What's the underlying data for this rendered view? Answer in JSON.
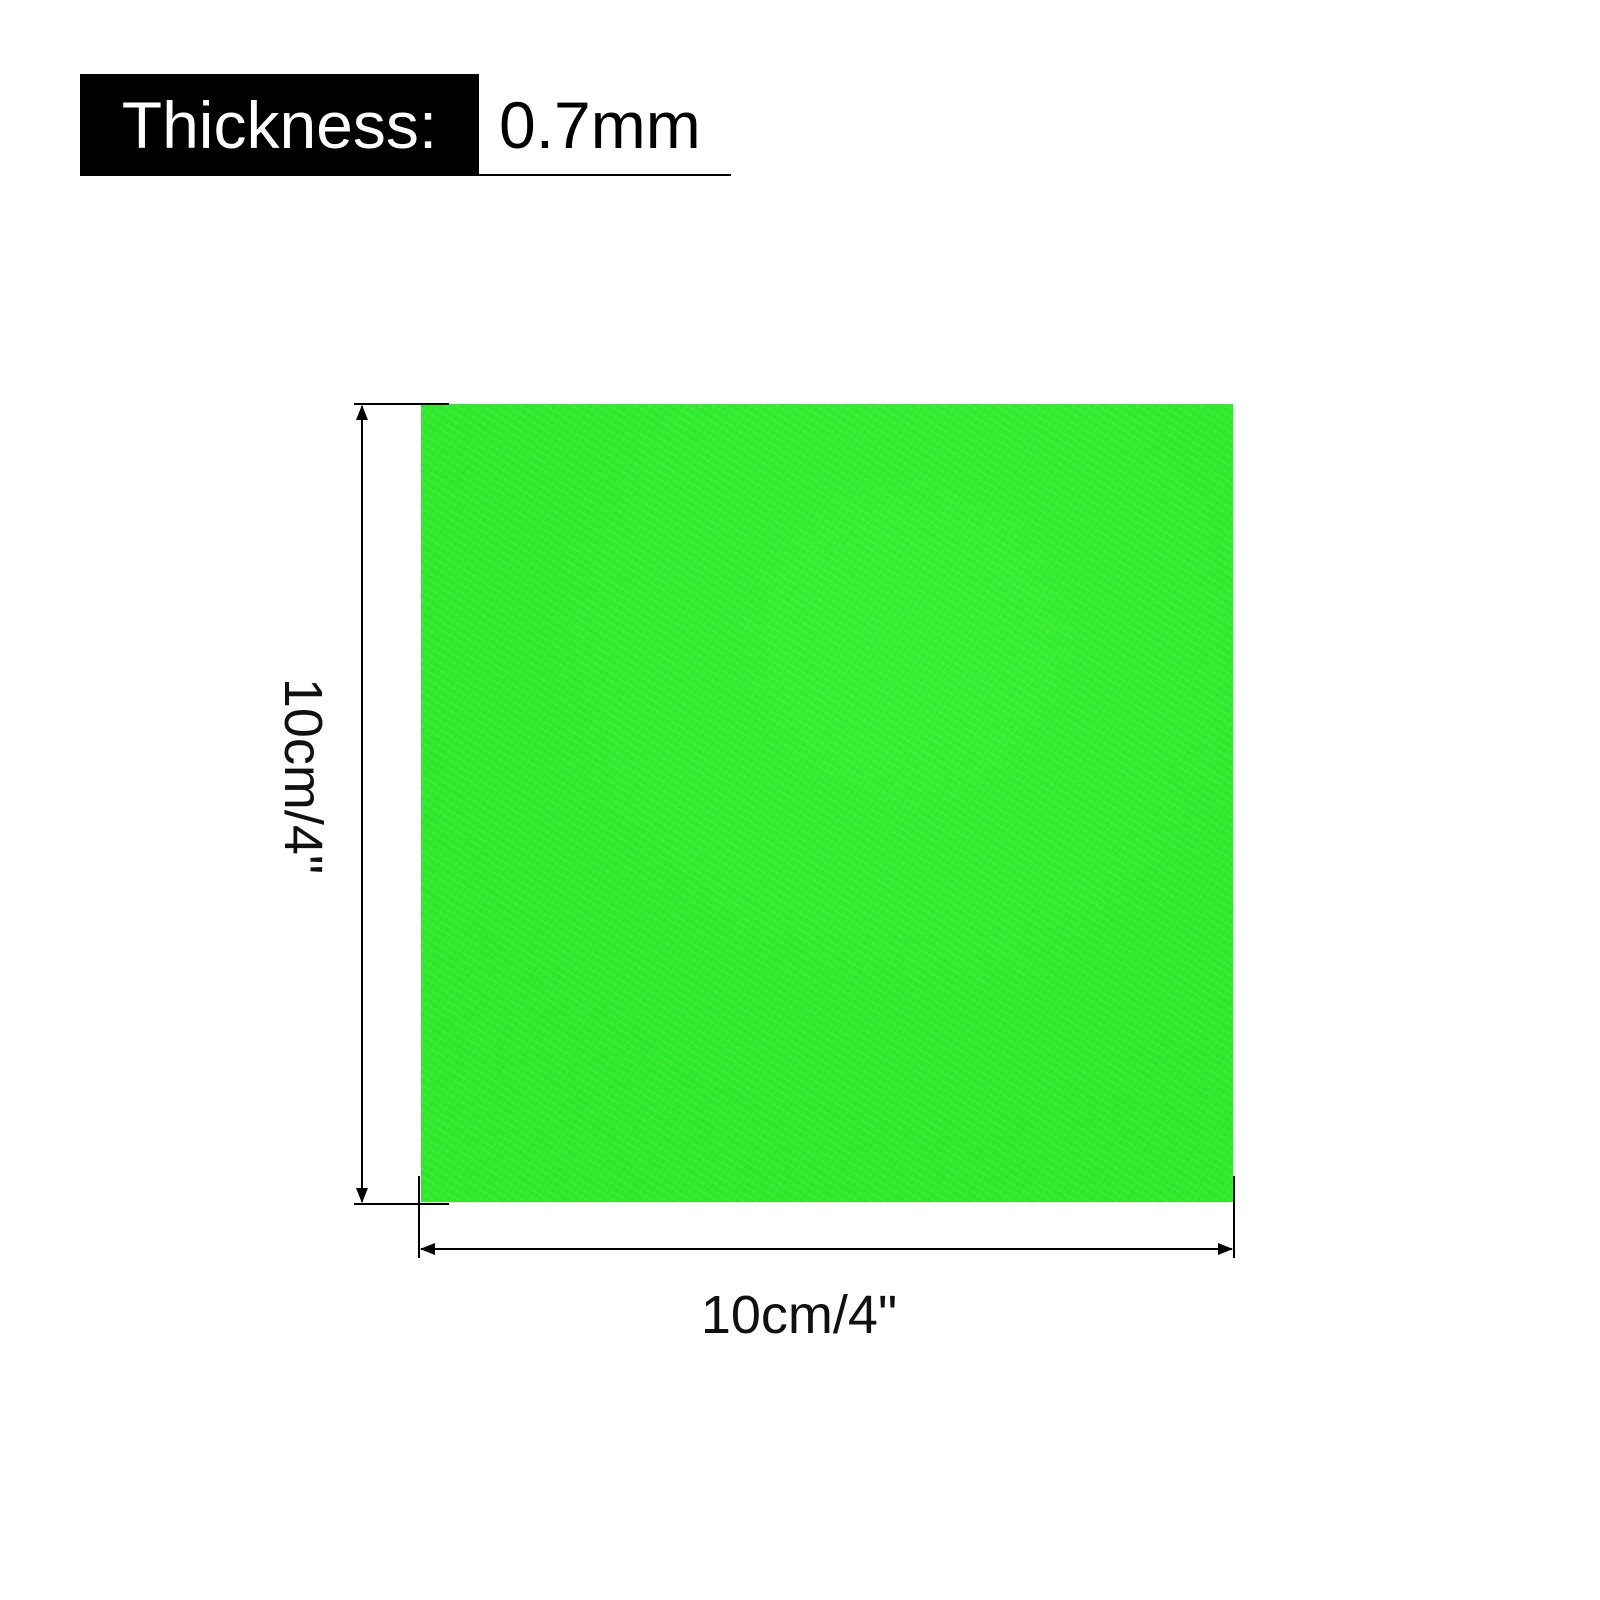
{
  "spec": {
    "label": "Thickness:",
    "value": "0.7mm"
  },
  "product": {
    "color": "#2eea2b"
  },
  "dimensions": {
    "width": "10cm/4\"",
    "height": "10cm/4\""
  }
}
